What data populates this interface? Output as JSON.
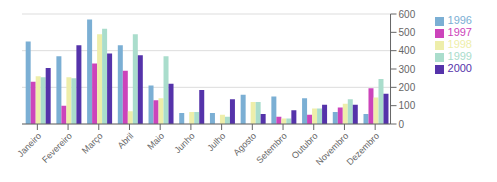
{
  "chart_data": {
    "type": "bar",
    "categories": [
      "Janeiro",
      "Fevereiro",
      "Março",
      "Abril",
      "Maio",
      "Junho",
      "Julho",
      "Agosto",
      "Setembro",
      "Outubro",
      "Novembro",
      "Dezembro"
    ],
    "series": [
      {
        "name": "1996",
        "color": "#7BAFD4",
        "values": [
          450,
          370,
          570,
          430,
          210,
          60,
          60,
          160,
          150,
          140,
          65,
          55
        ]
      },
      {
        "name": "1997",
        "color": "#CC44BB",
        "values": [
          230,
          100,
          330,
          290,
          130,
          0,
          0,
          0,
          40,
          50,
          90,
          195
        ]
      },
      {
        "name": "1998",
        "color": "#EEEEAA",
        "values": [
          260,
          255,
          490,
          70,
          140,
          65,
          50,
          120,
          30,
          85,
          110,
          145
        ]
      },
      {
        "name": "1999",
        "color": "#AADDCC",
        "values": [
          255,
          250,
          520,
          490,
          370,
          65,
          40,
          120,
          30,
          85,
          135,
          245
        ]
      },
      {
        "name": "2000",
        "color": "#5533AA",
        "values": [
          305,
          430,
          385,
          375,
          220,
          185,
          135,
          55,
          75,
          105,
          105,
          165
        ]
      }
    ],
    "ylim": [
      0,
      600
    ],
    "yticks": [
      0,
      100,
      200,
      300,
      400,
      500,
      600
    ],
    "grid": true,
    "legend": "right"
  }
}
